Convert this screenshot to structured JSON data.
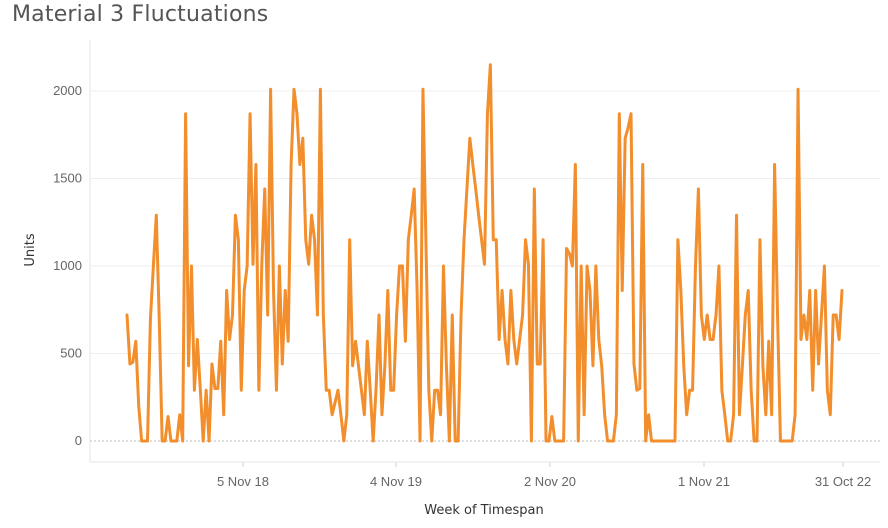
{
  "chart_data": {
    "type": "line",
    "title": "Material 3 Fluctuations",
    "xlabel": "Week of Timespan",
    "ylabel": "Units",
    "ylim": [
      -120,
      2300
    ],
    "yticks": [
      0,
      500,
      1000,
      1500,
      2000
    ],
    "xticks": [
      "5 Nov 18",
      "4 Nov 19",
      "2 Nov 20",
      "1 Nov 21",
      "31 Oct 22"
    ],
    "grid": "horizontal",
    "line_color": "#F28E2B",
    "series": [
      {
        "values": [
          720,
          440,
          450,
          570,
          200,
          0,
          0,
          0,
          700,
          1000,
          1290,
          700,
          0,
          0,
          140,
          0,
          0,
          0,
          150,
          0,
          1870,
          430,
          1000,
          290,
          580,
          300,
          0,
          290,
          0,
          440,
          300,
          300,
          570,
          150,
          860,
          580,
          720,
          1290,
          1150,
          290,
          860,
          1000,
          1870,
          1010,
          1580,
          290,
          1010,
          1440,
          720,
          2010,
          860,
          290,
          1000,
          440,
          860,
          570,
          1580,
          2010,
          1870,
          1580,
          1730,
          1150,
          1010,
          1290,
          1150,
          720,
          2010,
          720,
          290,
          290,
          150,
          220,
          290,
          150,
          0,
          150,
          1150,
          430,
          570,
          430,
          290,
          150,
          570,
          290,
          0,
          300,
          720,
          150,
          430,
          860,
          290,
          290,
          720,
          1000,
          1000,
          570,
          1150,
          1290,
          1440,
          860,
          0,
          2010,
          1150,
          290,
          0,
          290,
          290,
          150,
          1000,
          430,
          0,
          720,
          0,
          0,
          720,
          1150,
          1440,
          1730,
          1580,
          1440,
          1290,
          1150,
          1010,
          1870,
          2150,
          1150,
          1150,
          580,
          860,
          580,
          440,
          860,
          580,
          440,
          580,
          720,
          1150,
          1010,
          0,
          1440,
          440,
          440,
          1150,
          0,
          0,
          140,
          0,
          0,
          0,
          0,
          1100,
          1070,
          1000,
          1580,
          0,
          1000,
          150,
          1000,
          860,
          430,
          1000,
          580,
          430,
          150,
          0,
          0,
          0,
          150,
          1870,
          860,
          1730,
          1790,
          1870,
          440,
          290,
          300,
          1580,
          0,
          150,
          0,
          0,
          0,
          0,
          0,
          0,
          0,
          0,
          0,
          1150,
          860,
          430,
          150,
          290,
          290,
          1000,
          1440,
          720,
          580,
          720,
          580,
          580,
          720,
          1000,
          290,
          150,
          0,
          0,
          150,
          1290,
          150,
          430,
          720,
          860,
          290,
          0,
          0,
          1150,
          430,
          150,
          570,
          150,
          1580,
          720,
          0,
          0,
          0,
          0,
          0,
          150,
          2010,
          580,
          720,
          580,
          860,
          290,
          860,
          440,
          720,
          1000,
          290,
          150,
          720,
          720,
          580,
          860
        ]
      }
    ]
  }
}
